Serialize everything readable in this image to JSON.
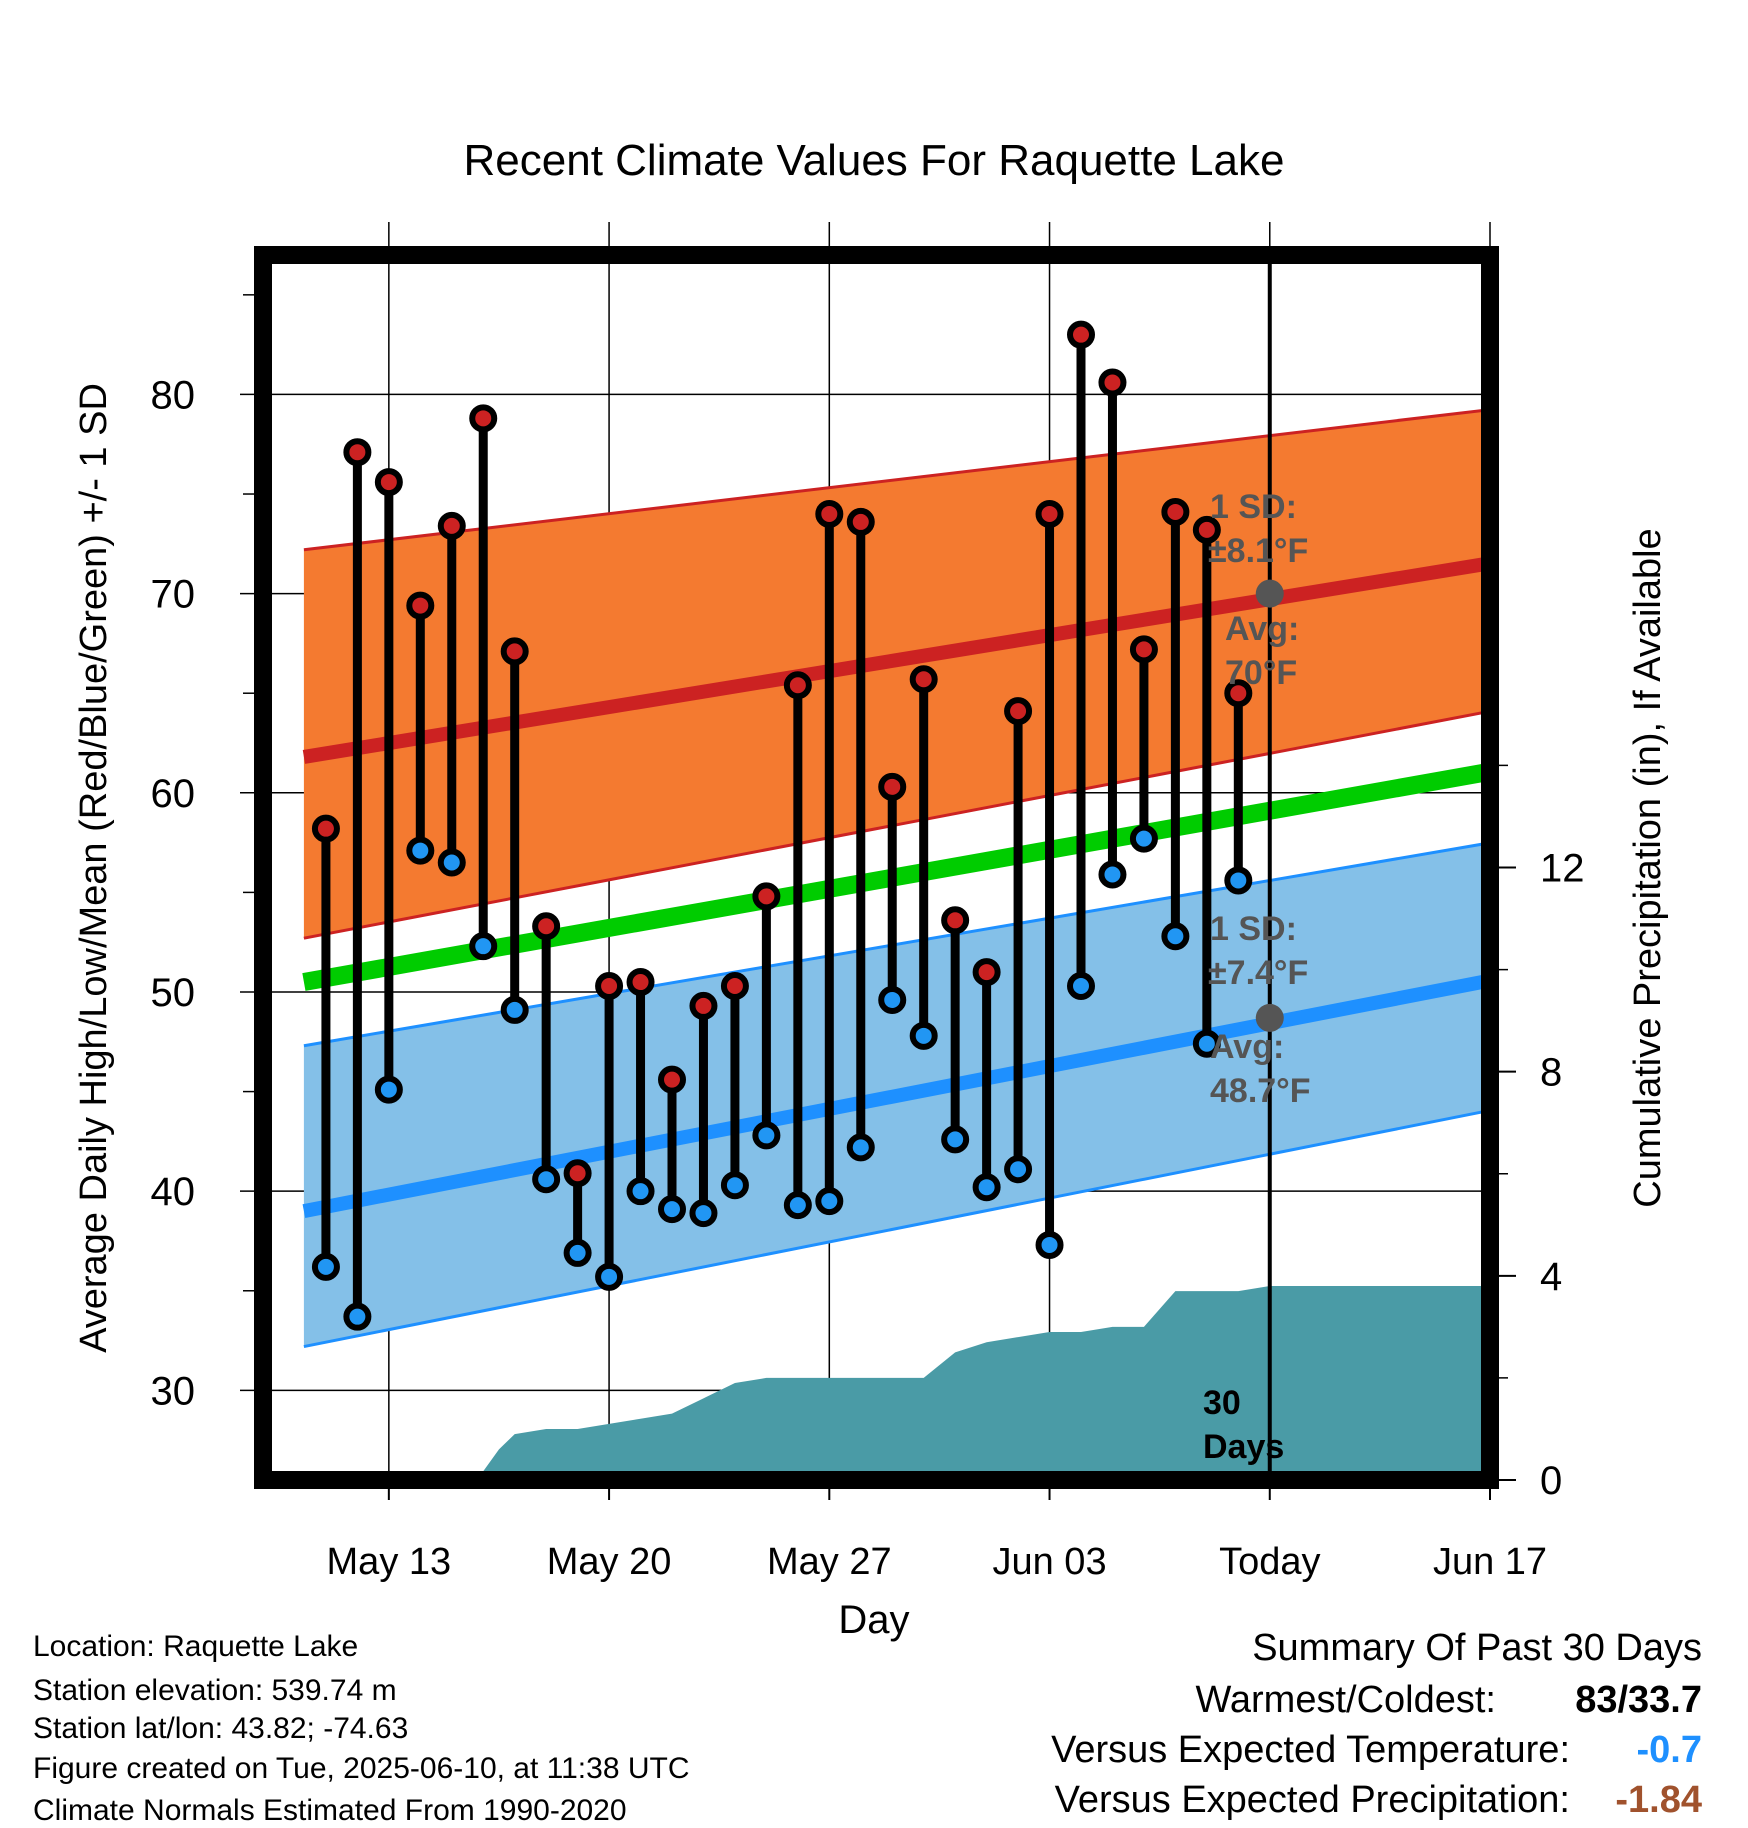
{
  "chart_data": {
    "type": "line",
    "title": "Recent Climate Values For Raquette Lake",
    "xlabel": "Day",
    "ylabel": "Average Daily High/Low/Mean (Red/Blue/Green) +/- 1 SD",
    "y2label": "Cumulative Precipitation (in), If Available",
    "xlim": [
      -4,
      35
    ],
    "ylim": [
      25.5,
      87
    ],
    "y2lim": [
      0,
      24
    ],
    "x_ticks": [
      {
        "x": 0,
        "label": "May 13"
      },
      {
        "x": 7,
        "label": "May 20"
      },
      {
        "x": 14,
        "label": "May 27"
      },
      {
        "x": 21,
        "label": "Jun 03"
      },
      {
        "x": 28,
        "label": "Today"
      },
      {
        "x": 35,
        "label": "Jun 17"
      }
    ],
    "y_ticks": [
      30,
      40,
      50,
      60,
      70,
      80
    ],
    "y2_ticks": [
      0,
      4,
      8,
      12
    ],
    "today_x": 28,
    "x": [
      -2,
      -1,
      0,
      1,
      2,
      3,
      4,
      5,
      6,
      7,
      8,
      9,
      10,
      11,
      12,
      13,
      14,
      15,
      16,
      17,
      18,
      19,
      20,
      21,
      22,
      23,
      24,
      25,
      26,
      27
    ],
    "daily_high": [
      58.2,
      77.1,
      75.6,
      69.4,
      73.4,
      78.8,
      67.1,
      53.3,
      40.9,
      50.3,
      50.5,
      45.6,
      49.3,
      50.3,
      54.8,
      65.4,
      74.0,
      73.6,
      60.3,
      65.7,
      53.6,
      51.0,
      64.1,
      74.0,
      83.0,
      80.6,
      67.2,
      74.1,
      73.2,
      65.0
    ],
    "daily_low": [
      36.2,
      33.7,
      45.1,
      57.1,
      56.5,
      52.3,
      49.1,
      40.6,
      36.9,
      35.7,
      40.0,
      39.1,
      38.9,
      40.3,
      42.8,
      39.3,
      39.5,
      42.2,
      49.6,
      47.8,
      42.6,
      40.2,
      41.1,
      37.3,
      50.3,
      55.9,
      57.7,
      52.8,
      47.4,
      55.6
    ],
    "normal_high_band": {
      "x": [
        -2.7,
        38
      ],
      "mean": [
        61.8,
        72.3
      ],
      "lower": [
        52.7,
        65.0
      ],
      "upper": [
        72.2,
        79.8
      ]
    },
    "normal_low_band": {
      "x": [
        -2.7,
        38
      ],
      "mean": [
        39.0,
        51.5
      ],
      "lower": [
        32.2,
        45.0
      ],
      "upper": [
        47.3,
        58.3
      ]
    },
    "normal_mean_line": {
      "x": [
        -2.7,
        38
      ],
      "y": [
        50.5,
        61.9
      ]
    },
    "precip_cumulative": {
      "x": [
        2.8,
        3.5,
        4,
        5,
        6,
        7,
        8,
        9,
        10,
        11,
        12,
        13,
        14,
        15,
        16,
        17,
        18,
        19,
        20,
        21,
        22,
        23,
        24,
        25,
        25.5,
        27,
        28,
        38
      ],
      "y": [
        0,
        0.6,
        0.9,
        1.0,
        1.0,
        1.1,
        1.2,
        1.3,
        1.6,
        1.9,
        2.0,
        2.0,
        2.0,
        2.0,
        2.0,
        2.0,
        2.5,
        2.7,
        2.8,
        2.9,
        2.9,
        3.0,
        3.0,
        3.7,
        3.7,
        3.7,
        3.8,
        3.8
      ]
    },
    "series": [
      {
        "name": "High",
        "color": "#cc2222"
      },
      {
        "name": "Low",
        "color": "#1e90ff"
      },
      {
        "name": "Mean",
        "color": "#00cc00"
      }
    ],
    "annotations": {
      "high_sd": {
        "line1": "1 SD:",
        "line2": "±8.1°F"
      },
      "high_avg": {
        "line1": "Avg:",
        "line2": "70°F",
        "value": 70
      },
      "low_sd": {
        "line1": "1 SD:",
        "line2": "±7.4°F"
      },
      "low_avg": {
        "line1": "Avg:",
        "line2": "48.7°F",
        "value": 48.7
      },
      "precip_days": {
        "line1": "30",
        "line2": "Days"
      }
    },
    "colors": {
      "high_band": "#f47a30",
      "high_line": "#cc2222",
      "low_band": "#84c0e8",
      "low_line": "#1e90ff",
      "mean_line": "#00cc00",
      "precip": "#4a9ba6",
      "marker_high": "#cc2222",
      "marker_low": "#2196f3",
      "annotation": "#555555"
    }
  },
  "footer": {
    "location": "Location: Raquette Lake",
    "elevation": "Station elevation: 539.74 m",
    "latlon": "Station lat/lon: 43.82; -74.63",
    "created": "Figure created on Tue, 2025-06-10, at 11:38 UTC",
    "normals": "Climate Normals Estimated From 1990-2020"
  },
  "summary": {
    "title": "Summary Of Past 30 Days",
    "warmest_label": "Warmest/Coldest:",
    "warmest_value": "83/33.7",
    "temp_label": "Versus Expected Temperature:",
    "temp_value": "-0.7",
    "precip_label": "Versus Expected Precipitation:",
    "precip_value": "-1.84",
    "temp_color": "#1e90ff",
    "precip_color": "#a0522d"
  }
}
